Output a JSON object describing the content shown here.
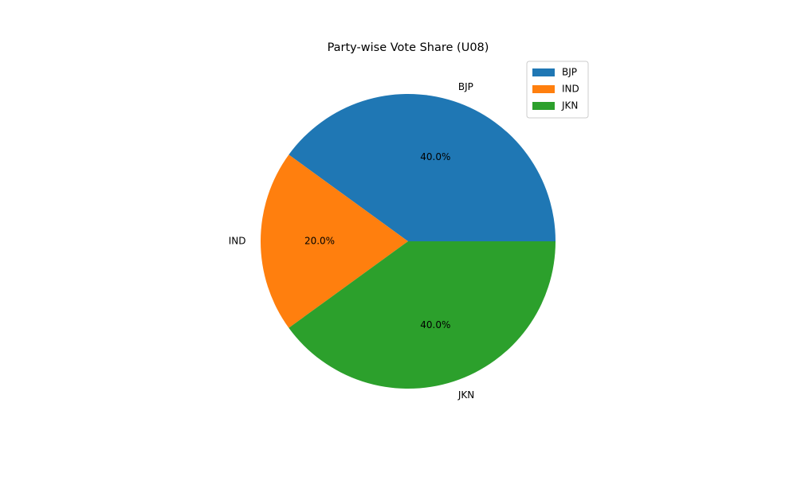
{
  "chart_data": {
    "type": "pie",
    "title": "Party-wise Vote Share (U08)",
    "slices": [
      {
        "label": "BJP",
        "value": 40.0,
        "pct_label": "40.0%",
        "color": "#1f77b4"
      },
      {
        "label": "IND",
        "value": 20.0,
        "pct_label": "20.0%",
        "color": "#ff7f0e"
      },
      {
        "label": "JKN",
        "value": 40.0,
        "pct_label": "40.0%",
        "color": "#2ca02c"
      }
    ],
    "legend": {
      "position": "top-right",
      "entries": [
        "BJP",
        "IND",
        "JKN"
      ]
    }
  }
}
